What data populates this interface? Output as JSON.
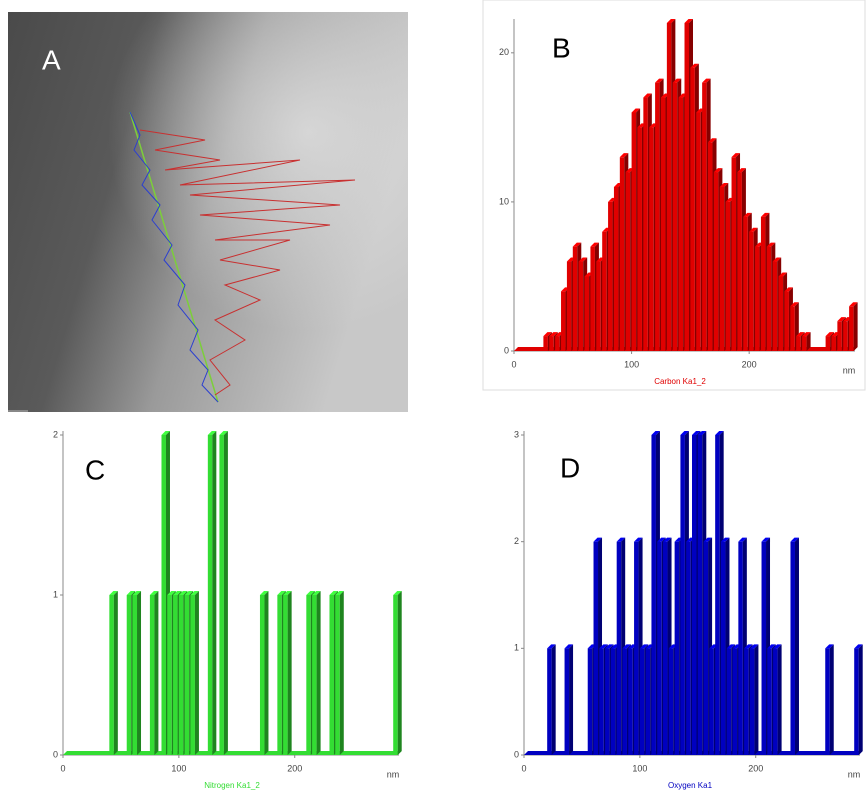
{
  "image_panel": {
    "label": "A"
  },
  "chart_data": [
    {
      "type": "bar",
      "panel": "B",
      "x_label": "Carbon Ka1_2",
      "x_unit": "nm",
      "color": "#e00000",
      "xlim": [
        0,
        290
      ],
      "ylim": [
        0,
        22
      ],
      "xticks": [
        0,
        100,
        200
      ],
      "yticks": [
        0,
        10,
        20
      ],
      "x": [
        0,
        5,
        10,
        15,
        20,
        25,
        30,
        35,
        40,
        45,
        50,
        55,
        60,
        65,
        70,
        75,
        80,
        85,
        90,
        95,
        100,
        105,
        110,
        115,
        120,
        125,
        130,
        135,
        140,
        145,
        150,
        155,
        160,
        165,
        170,
        175,
        180,
        185,
        190,
        195,
        200,
        205,
        210,
        215,
        220,
        225,
        230,
        235,
        240,
        245,
        250,
        255,
        260,
        265,
        270,
        275,
        280,
        285
      ],
      "values": [
        0,
        0,
        0,
        0,
        0,
        1,
        1,
        1,
        4,
        6,
        7,
        6,
        5,
        7,
        6,
        8,
        10,
        11,
        13,
        12,
        16,
        15,
        17,
        15,
        18,
        17,
        22,
        18,
        17,
        22,
        19,
        16,
        18,
        14,
        12,
        11,
        10,
        13,
        12,
        9,
        8,
        7,
        9,
        7,
        6,
        5,
        4,
        3,
        1,
        1,
        0,
        0,
        0,
        1,
        1,
        2,
        2,
        3
      ]
    },
    {
      "type": "bar",
      "panel": "C",
      "x_label": "Nitrogen Ka1_2",
      "x_unit": "nm",
      "color": "#33dd33",
      "xlim": [
        0,
        290
      ],
      "ylim": [
        0,
        2
      ],
      "xticks": [
        0,
        100,
        200
      ],
      "yticks": [
        0,
        1,
        2
      ],
      "x": [
        0,
        5,
        10,
        15,
        20,
        25,
        30,
        35,
        40,
        45,
        50,
        55,
        60,
        65,
        70,
        75,
        80,
        85,
        90,
        95,
        100,
        105,
        110,
        115,
        120,
        125,
        130,
        135,
        140,
        145,
        150,
        155,
        160,
        165,
        170,
        175,
        180,
        185,
        190,
        195,
        200,
        205,
        210,
        215,
        220,
        225,
        230,
        235,
        240,
        245,
        250,
        255,
        260,
        265,
        270,
        275,
        280,
        285
      ],
      "values": [
        0,
        0,
        0,
        0,
        0,
        0,
        0,
        0,
        1,
        0,
        0,
        1,
        1,
        0,
        0,
        1,
        0,
        2,
        1,
        1,
        1,
        1,
        1,
        0,
        0,
        2,
        0,
        2,
        0,
        0,
        0,
        0,
        0,
        0,
        1,
        0,
        0,
        1,
        1,
        0,
        0,
        0,
        1,
        1,
        0,
        0,
        1,
        1,
        0,
        0,
        0,
        0,
        0,
        0,
        0,
        0,
        0,
        1
      ]
    },
    {
      "type": "bar",
      "panel": "D",
      "x_label": "Oxygen Ka1",
      "x_unit": "nm",
      "color": "#0000c0",
      "xlim": [
        0,
        290
      ],
      "ylim": [
        0,
        3
      ],
      "xticks": [
        0,
        100,
        200
      ],
      "yticks": [
        0,
        1,
        2,
        3
      ],
      "x": [
        0,
        5,
        10,
        15,
        20,
        25,
        30,
        35,
        40,
        45,
        50,
        55,
        60,
        65,
        70,
        75,
        80,
        85,
        90,
        95,
        100,
        105,
        110,
        115,
        120,
        125,
        130,
        135,
        140,
        145,
        150,
        155,
        160,
        165,
        170,
        175,
        180,
        185,
        190,
        195,
        200,
        205,
        210,
        215,
        220,
        225,
        230,
        235,
        240,
        245,
        250,
        255,
        260,
        265,
        270,
        275,
        280,
        285
      ],
      "values": [
        0,
        0,
        0,
        0,
        1,
        0,
        0,
        1,
        0,
        0,
        0,
        1,
        2,
        1,
        1,
        1,
        2,
        1,
        1,
        2,
        1,
        1,
        3,
        2,
        2,
        1,
        2,
        3,
        2,
        3,
        3,
        2,
        1,
        3,
        2,
        1,
        1,
        2,
        1,
        1,
        0,
        2,
        1,
        1,
        0,
        0,
        2,
        0,
        0,
        0,
        0,
        0,
        1,
        0,
        0,
        0,
        0,
        1
      ]
    }
  ]
}
